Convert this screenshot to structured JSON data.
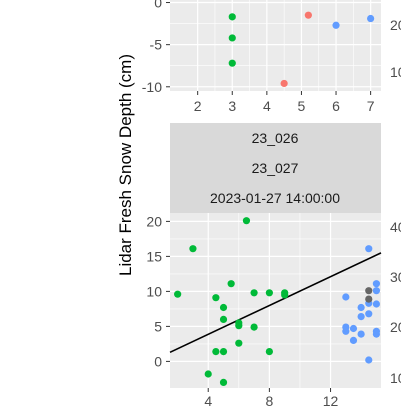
{
  "ylabel": "Lidar Fresh Snow Depth (cm)",
  "colors": {
    "green": "#00BA38",
    "red": "#F8766D",
    "blue": "#619CFF",
    "grey": "#666666",
    "panel_bg": "#EBEBEB",
    "strip_bg": "#D9D9D9",
    "grid": "#FFFFFF"
  },
  "strip": {
    "line1": "23_026",
    "line2": "23_027",
    "line3": "2023-01-27 14:00:00"
  },
  "right_cut_ticks": {
    "top": [
      "20",
      "10"
    ],
    "bottom": [
      "40",
      "30",
      "20",
      "10"
    ]
  },
  "chart_data": [
    {
      "type": "scatter",
      "panel": "top",
      "xlim": [
        1.2,
        7.3
      ],
      "ylim": [
        -10.5,
        0.3
      ],
      "x_ticks": [
        2,
        3,
        4,
        5,
        6,
        7
      ],
      "x_tick_labels": [
        "2",
        "3",
        "4",
        "5",
        "6",
        "7"
      ],
      "y_ticks": [
        0,
        -5,
        -10
      ],
      "y_tick_labels": [
        "0",
        "-5",
        "-10"
      ],
      "grid": true,
      "series": [
        {
          "color": "green",
          "points": [
            [
              3.0,
              -1.7
            ],
            [
              3.0,
              -4.2
            ],
            [
              3.0,
              -7.2
            ]
          ]
        },
        {
          "color": "red",
          "points": [
            [
              5.2,
              -1.5
            ],
            [
              4.5,
              -9.6
            ]
          ]
        },
        {
          "color": "blue",
          "points": [
            [
              6.0,
              -2.7
            ],
            [
              7.0,
              -1.9
            ]
          ]
        }
      ]
    },
    {
      "type": "scatter",
      "panel": "bottom",
      "xlim": [
        1.5,
        15.3
      ],
      "ylim": [
        -3.8,
        21.2
      ],
      "x_ticks": [
        4,
        8,
        12
      ],
      "x_tick_labels": [
        "4",
        "8",
        "12"
      ],
      "y_ticks": [
        0,
        5,
        10,
        15,
        20
      ],
      "y_tick_labels": [
        "0",
        "5",
        "10",
        "15",
        "20"
      ],
      "grid": true,
      "fit_line": {
        "x": [
          1.5,
          15.3
        ],
        "y": [
          1.3,
          15.5
        ],
        "color": "#000000"
      },
      "series": [
        {
          "color": "green",
          "points": [
            [
              2.0,
              9.6
            ],
            [
              3.0,
              16.1
            ],
            [
              4.0,
              -1.8
            ],
            [
              4.5,
              9.1
            ],
            [
              4.5,
              1.4
            ],
            [
              5.0,
              7.7
            ],
            [
              5.0,
              6.0
            ],
            [
              5.0,
              1.4
            ],
            [
              5.0,
              -3.0
            ],
            [
              5.5,
              11.1
            ],
            [
              6.0,
              5.5
            ],
            [
              6.0,
              5.1
            ],
            [
              6.0,
              2.6
            ],
            [
              6.5,
              20.1
            ],
            [
              7.0,
              9.8
            ],
            [
              7.0,
              4.9
            ],
            [
              8.0,
              9.8
            ],
            [
              8.0,
              1.4
            ],
            [
              9.0,
              9.8
            ],
            [
              9.0,
              9.5
            ]
          ]
        },
        {
          "color": "blue",
          "points": [
            [
              13.0,
              9.2
            ],
            [
              13.0,
              4.9
            ],
            [
              13.0,
              4.3
            ],
            [
              13.5,
              4.7
            ],
            [
              13.5,
              3.0
            ],
            [
              14.0,
              7.7
            ],
            [
              14.0,
              6.4
            ],
            [
              14.0,
              3.9
            ],
            [
              14.5,
              16.1
            ],
            [
              14.5,
              8.3
            ],
            [
              14.5,
              6.8
            ],
            [
              14.5,
              0.2
            ],
            [
              15.0,
              11.1
            ],
            [
              15.0,
              10.1
            ],
            [
              15.0,
              8.2
            ],
            [
              15.0,
              4.3
            ],
            [
              15.0,
              3.9
            ]
          ]
        },
        {
          "color": "grey",
          "points": [
            [
              14.5,
              10.1
            ],
            [
              14.5,
              8.9
            ]
          ]
        }
      ]
    }
  ]
}
